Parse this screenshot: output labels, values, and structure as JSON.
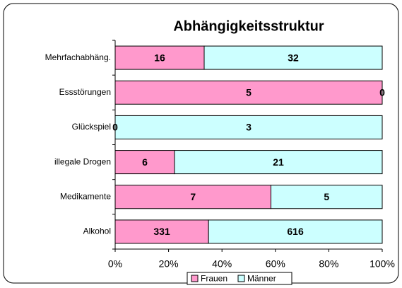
{
  "chart_data": {
    "type": "bar",
    "orientation": "horizontal",
    "stacking": "percent",
    "title": "Abhängigkeitsstruktur",
    "categories": [
      "Mehrfachabhäng.",
      "Essstörungen",
      "Glückspiel",
      "illegale Drogen",
      "Medikamente",
      "Alkohol"
    ],
    "series": [
      {
        "name": "Frauen",
        "color": "#ff99cc",
        "values": [
          16,
          5,
          0,
          6,
          7,
          331
        ]
      },
      {
        "name": "Männer",
        "color": "#ccffff",
        "values": [
          32,
          0,
          3,
          21,
          5,
          616
        ]
      }
    ],
    "xlim": [
      0,
      100
    ],
    "xticks": [
      {
        "value": 0,
        "label": "0%"
      },
      {
        "value": 20,
        "label": "20%"
      },
      {
        "value": 40,
        "label": "40%"
      },
      {
        "value": 60,
        "label": "60%"
      },
      {
        "value": 80,
        "label": "80%"
      },
      {
        "value": 100,
        "label": "100%"
      }
    ],
    "legend": "bottom",
    "grid": false
  }
}
